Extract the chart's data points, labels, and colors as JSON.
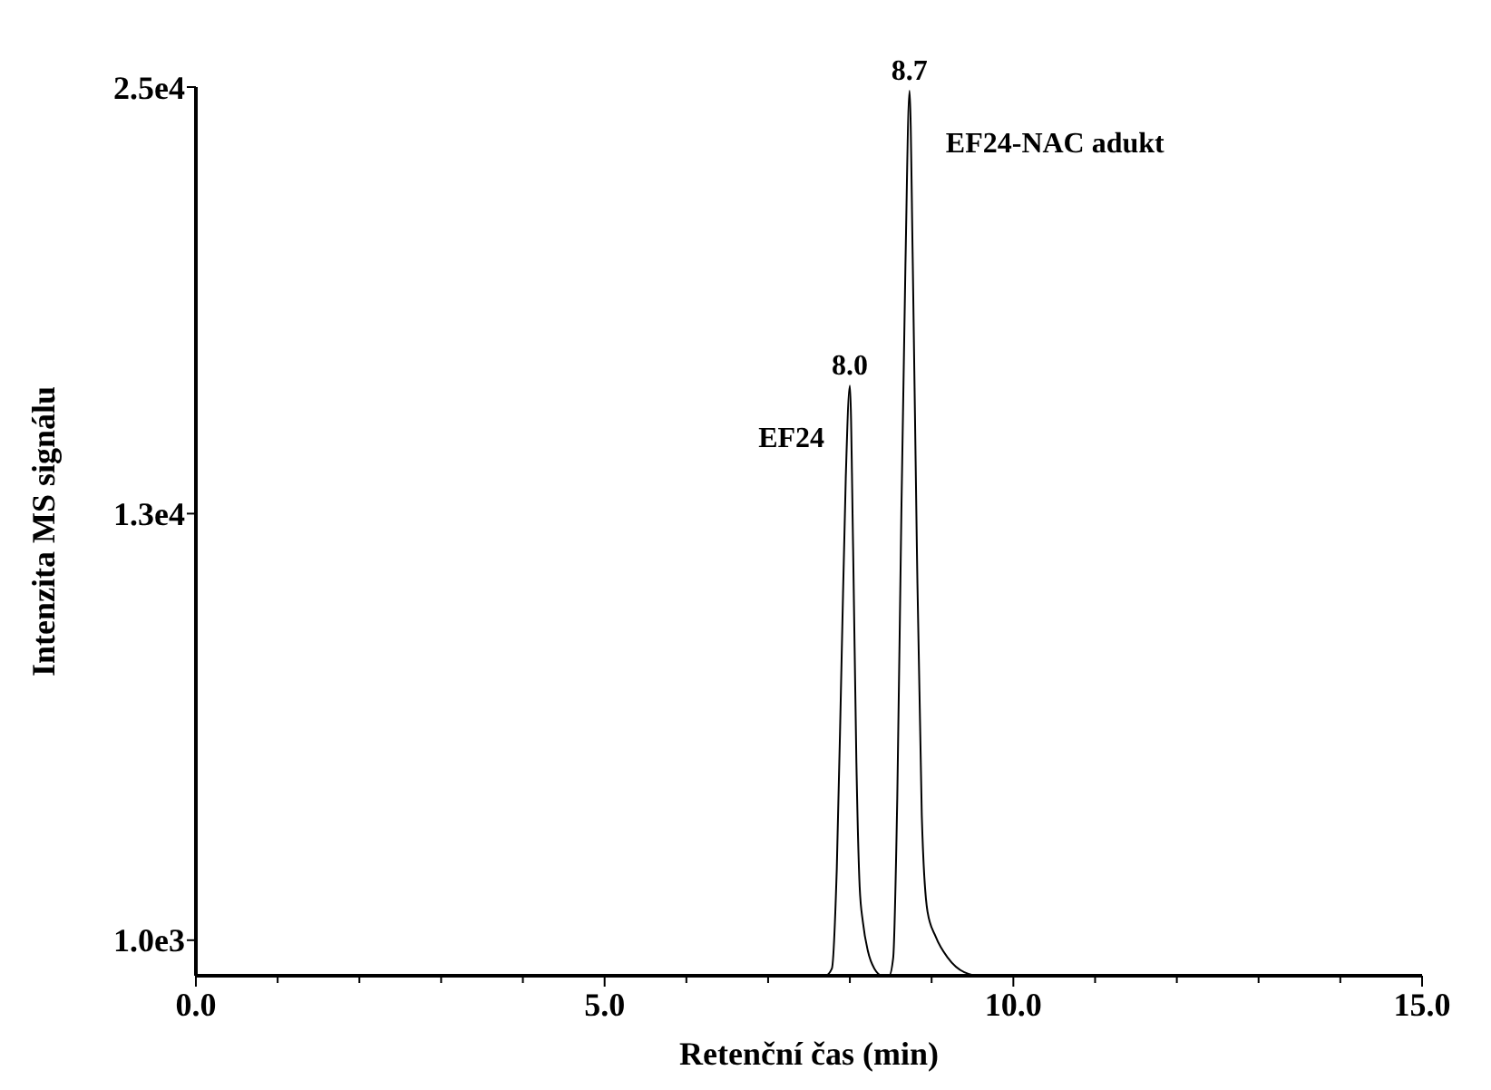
{
  "chart_data": {
    "type": "line",
    "xlabel": "Retenční čas (min)",
    "ylabel": "Intenzita MS signálu",
    "x": [
      0,
      7.7,
      7.78,
      7.84,
      7.9,
      7.95,
      8.0,
      8.04,
      8.08,
      8.12,
      8.16,
      8.22,
      8.3,
      8.4,
      8.48,
      8.53,
      8.58,
      8.63,
      8.68,
      8.73,
      8.77,
      8.82,
      8.88,
      8.95,
      9.05,
      9.2,
      9.4,
      9.6,
      15
    ],
    "series": [
      {
        "color": "#000000",
        "values": [
          0,
          0,
          200,
          3000,
          9000,
          14000,
          16600,
          12000,
          6000,
          2500,
          1500,
          700,
          200,
          0,
          0,
          500,
          5000,
          13000,
          20000,
          24900,
          20000,
          12000,
          4500,
          1800,
          1100,
          500,
          100,
          0,
          0
        ]
      }
    ],
    "xlim": [
      0,
      15
    ],
    "xticks": [
      {
        "value": 0,
        "label": "0.0"
      },
      {
        "value": 1,
        "label": null
      },
      {
        "value": 2,
        "label": null
      },
      {
        "value": 3,
        "label": null
      },
      {
        "value": 4,
        "label": null
      },
      {
        "value": 5,
        "label": "5.0"
      },
      {
        "value": 6,
        "label": null
      },
      {
        "value": 7,
        "label": null
      },
      {
        "value": 8,
        "label": null
      },
      {
        "value": 9,
        "label": null
      },
      {
        "value": 10,
        "label": "10.0"
      },
      {
        "value": 11,
        "label": null
      },
      {
        "value": 12,
        "label": null
      },
      {
        "value": 13,
        "label": null
      },
      {
        "value": 14,
        "label": null
      },
      {
        "value": 15,
        "label": "15.0"
      }
    ],
    "ylim": [
      0,
      25000
    ],
    "yticks": [
      {
        "value": 1000,
        "label": "1.0e3"
      },
      {
        "value": 13000,
        "label": "1.3e4"
      },
      {
        "value": 25000,
        "label": "2.5e4"
      }
    ],
    "annotations": [
      {
        "text": "8.0",
        "x": 8.0,
        "y": 16600
      },
      {
        "text": "8.7",
        "x": 8.73,
        "y": 24900
      },
      "EF24",
      "EF24-NAC adukt"
    ],
    "grid": false,
    "marker": "none",
    "line_style": "solid"
  }
}
